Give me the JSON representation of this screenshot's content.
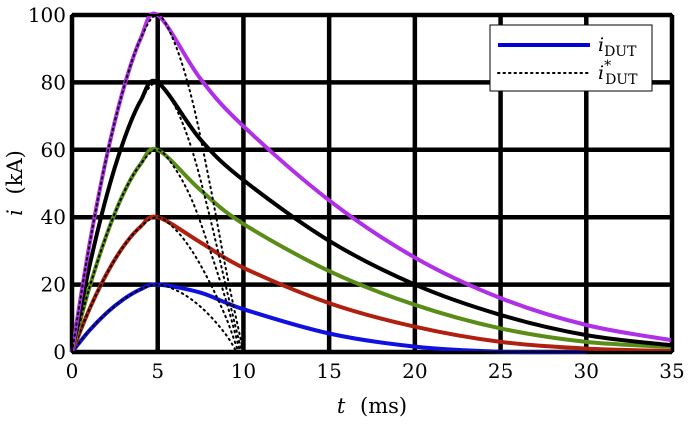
{
  "chart_data": {
    "type": "line",
    "xlabel_var": "t",
    "xlabel_unit": "(ms)",
    "ylabel_var": "i",
    "ylabel_unit": "(kA)",
    "xlim": [
      0,
      35
    ],
    "ylim": [
      0,
      100
    ],
    "xticks": [
      "0",
      "5",
      "10",
      "15",
      "20",
      "25",
      "30",
      "35"
    ],
    "yticks": [
      "0",
      "20",
      "40",
      "60",
      "80",
      "100"
    ],
    "grid": true,
    "legend_position": "top-right",
    "legend": [
      {
        "symbol": "i",
        "subscript": "DUT",
        "superscript": "",
        "style": "solid",
        "color": "#0000dd"
      },
      {
        "symbol": "i",
        "subscript": "DUT",
        "superscript": "*",
        "style": "dotted",
        "color": "#000000"
      }
    ],
    "series": [
      {
        "peak": 20,
        "color": "#1010e0",
        "x": [
          0,
          1,
          2,
          3,
          4,
          5,
          7.5,
          10,
          15,
          20,
          25,
          30
        ],
        "y": [
          0,
          6.3,
          11.5,
          15.6,
          18.6,
          20,
          17.6,
          12.7,
          5.5,
          1.6,
          0.1,
          0
        ],
        "dotted_x": [
          0,
          1,
          2,
          3,
          4,
          5,
          6,
          7,
          8,
          9,
          9.6
        ],
        "dotted_y": [
          0,
          6.3,
          11.5,
          15.6,
          18.6,
          20,
          18.5,
          15.5,
          11,
          5,
          0
        ]
      },
      {
        "peak": 40,
        "color": "#b02010",
        "x": [
          0,
          1,
          2,
          3,
          4,
          5,
          7.5,
          10,
          15,
          20,
          25,
          30,
          35
        ],
        "y": [
          0,
          12.5,
          23,
          31.3,
          37.2,
          40,
          32.5,
          25,
          14.5,
          7.5,
          3,
          1,
          0.3
        ],
        "dotted_x": [
          0,
          1,
          2,
          3,
          4,
          5,
          6,
          7,
          8,
          9,
          9.7
        ],
        "dotted_y": [
          0,
          12.5,
          23,
          31.3,
          37.2,
          40,
          36.5,
          30,
          21,
          10,
          0
        ]
      },
      {
        "peak": 60,
        "color": "#5a8c18",
        "x": [
          0,
          1,
          2,
          3,
          4,
          5,
          7.5,
          10,
          15,
          20,
          25,
          30,
          35
        ],
        "y": [
          0,
          18.8,
          34.5,
          47,
          55.8,
          60,
          48,
          38,
          24,
          14,
          7,
          3,
          1.5
        ],
        "dotted_x": [
          0,
          1,
          2,
          3,
          4,
          5,
          6,
          7,
          8,
          9,
          9.8
        ],
        "dotted_y": [
          0,
          18.8,
          34.5,
          47,
          55.8,
          60,
          54.5,
          45,
          31,
          15,
          0
        ]
      },
      {
        "peak": 80,
        "color": "#000000",
        "x": [
          0,
          1,
          2,
          3,
          4,
          5,
          7.5,
          10,
          15,
          20,
          25,
          30,
          35
        ],
        "y": [
          0,
          25,
          46,
          62.5,
          74.5,
          80,
          63,
          51,
          33,
          20,
          11,
          5,
          2
        ],
        "dotted_x": [
          0,
          1,
          2,
          3,
          4,
          5,
          6,
          7,
          8,
          9,
          9.9
        ],
        "dotted_y": [
          0,
          25,
          46,
          62.5,
          74.5,
          80,
          73,
          60,
          41,
          19,
          0
        ]
      },
      {
        "peak": 100,
        "color": "#b030e8",
        "x": [
          0,
          1,
          2,
          3,
          4,
          5,
          7.5,
          10,
          15,
          20,
          25,
          30,
          35
        ],
        "y": [
          0,
          31.3,
          57.5,
          78,
          93,
          100,
          81,
          67,
          45,
          28,
          16,
          8,
          3.5
        ],
        "dotted_x": [
          0,
          1,
          2,
          3,
          4,
          5,
          6,
          7,
          8,
          9,
          10
        ],
        "dotted_y": [
          0,
          31.3,
          57.5,
          78,
          93,
          100,
          91.5,
          75,
          51,
          24,
          0
        ]
      }
    ]
  }
}
